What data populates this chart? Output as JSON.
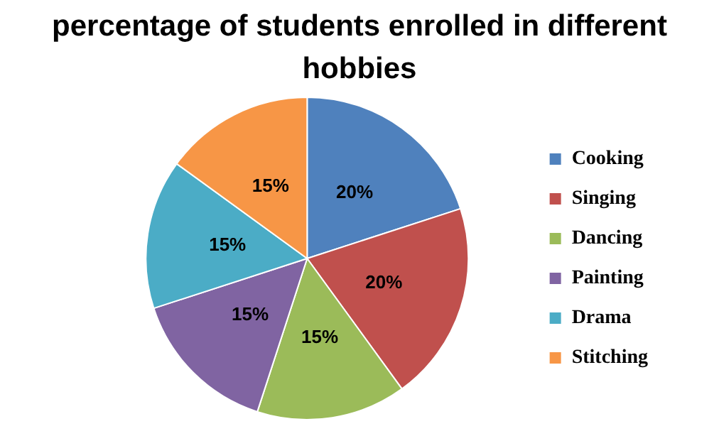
{
  "chart_data": {
    "type": "pie",
    "title": "percentage of students enrolled in different hobbies",
    "categories": [
      "Cooking",
      "Singing",
      "Dancing",
      "Painting",
      "Drama",
      "Stitching"
    ],
    "values": [
      20,
      20,
      15,
      15,
      15,
      15
    ],
    "value_labels": [
      "20%",
      "20%",
      "15%",
      "15%",
      "15%",
      "15%"
    ],
    "colors": [
      "#4f81bd",
      "#c0504d",
      "#9bbb59",
      "#8064a2",
      "#4bacc6",
      "#f79646"
    ],
    "legend": "right"
  }
}
